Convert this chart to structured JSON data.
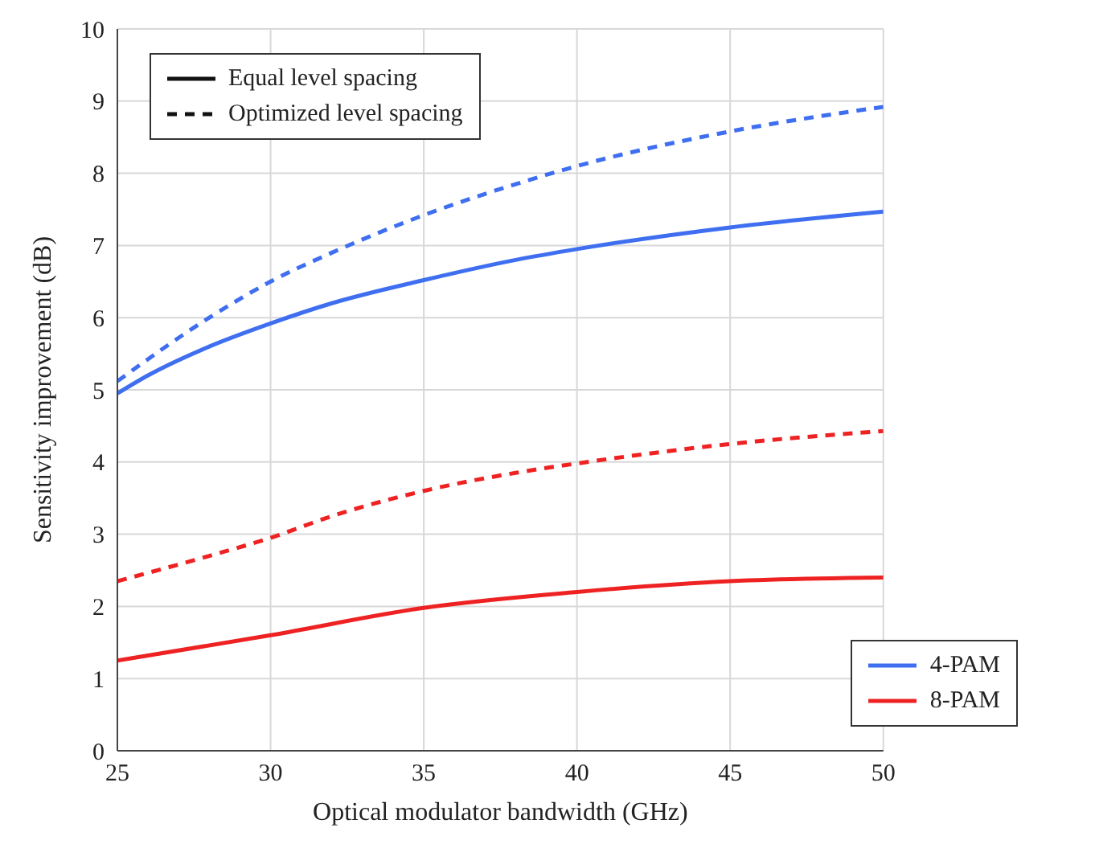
{
  "chart_data": {
    "type": "line",
    "xlabel": "Optical modulator bandwidth (GHz)",
    "ylabel": "Sensitivity improvement (dB)",
    "xlim": [
      25,
      50
    ],
    "xticks": [
      25,
      30,
      35,
      40,
      45,
      50
    ],
    "ylim": [
      0,
      10
    ],
    "yticks": [
      0,
      1,
      2,
      3,
      4,
      5,
      6,
      7,
      8,
      9,
      10
    ],
    "grid": true,
    "legend": "bottom right",
    "marker": "none",
    "annotations": [
      "Equal level spacing",
      "Optimized level spacing"
    ],
    "series": [
      {
        "name": "4-PAM",
        "color": "#3f6ff0",
        "line_style": "solid",
        "x": [
          25,
          26,
          28,
          30,
          32,
          35,
          38,
          40,
          45,
          50
        ],
        "values": [
          4.95,
          5.2,
          5.6,
          5.92,
          6.2,
          6.52,
          6.8,
          6.95,
          7.25,
          7.47
        ]
      },
      {
        "name": "8-PAM",
        "color": "#ee2222",
        "line_style": "solid",
        "x": [
          25,
          30,
          35,
          40,
          45,
          50
        ],
        "values": [
          1.25,
          1.6,
          1.98,
          2.2,
          2.35,
          2.4
        ]
      },
      {
        "color": "#3f6ff0",
        "line_style": "dashed",
        "x": [
          25,
          28,
          30,
          32,
          35,
          38,
          40,
          45,
          50
        ],
        "values": [
          5.12,
          6.0,
          6.5,
          6.9,
          7.42,
          7.85,
          8.1,
          8.58,
          8.92
        ]
      },
      {
        "color": "#ee2222",
        "line_style": "dashed",
        "x": [
          25,
          28,
          30,
          32,
          35,
          38,
          40,
          45,
          50
        ],
        "values": [
          2.35,
          2.7,
          2.95,
          3.25,
          3.6,
          3.85,
          3.98,
          4.25,
          4.43
        ]
      }
    ]
  }
}
